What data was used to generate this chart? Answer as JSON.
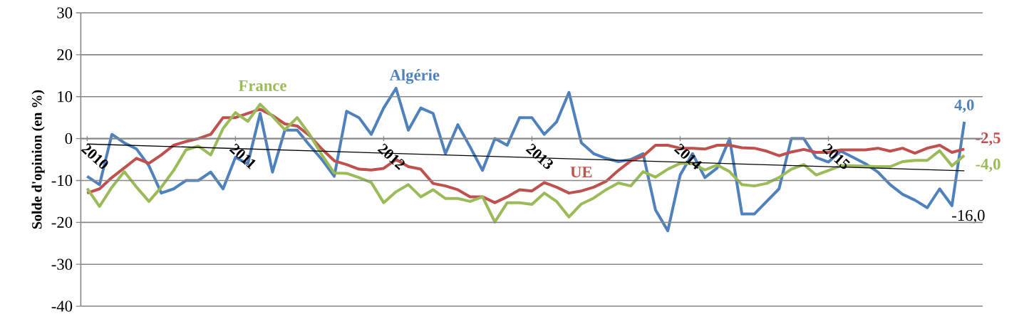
{
  "chart_data": {
    "type": "line",
    "ylabel": "Solde d'opinion (en %)",
    "x": [
      "2010-01",
      "2010-02",
      "2010-03",
      "2010-04",
      "2010-05",
      "2010-06",
      "2010-07",
      "2010-08",
      "2010-09",
      "2010-10",
      "2010-11",
      "2010-12",
      "2011-01",
      "2011-02",
      "2011-03",
      "2011-04",
      "2011-05",
      "2011-06",
      "2011-07",
      "2011-08",
      "2011-09",
      "2011-10",
      "2011-11",
      "2011-12",
      "2012-01",
      "2012-02",
      "2012-03",
      "2012-04",
      "2012-05",
      "2012-06",
      "2012-07",
      "2012-08",
      "2012-09",
      "2012-10",
      "2012-11",
      "2012-12",
      "2013-01",
      "2013-02",
      "2013-03",
      "2013-04",
      "2013-05",
      "2013-06",
      "2013-07",
      "2013-08",
      "2013-09",
      "2013-10",
      "2013-11",
      "2013-12",
      "2014-01",
      "2014-02",
      "2014-03",
      "2014-04",
      "2014-05",
      "2014-06",
      "2014-07",
      "2014-08",
      "2014-09",
      "2014-10",
      "2014-11",
      "2014-12",
      "2015-01",
      "2015-02",
      "2015-03",
      "2015-04",
      "2015-05",
      "2015-06",
      "2015-07",
      "2015-08",
      "2015-09",
      "2015-10",
      "2015-11",
      "2015-12"
    ],
    "xlim": [
      "2009-12-16",
      "2016-01-16"
    ],
    "xticks": [
      {
        "value": "2010-01",
        "label": "2010"
      },
      {
        "value": "2011-01",
        "label": "2011"
      },
      {
        "value": "2012-01",
        "label": "2012"
      },
      {
        "value": "2013-01",
        "label": "2013"
      },
      {
        "value": "2014-01",
        "label": "2014"
      },
      {
        "value": "2015-01",
        "label": "2015"
      }
    ],
    "ylim": [
      -40,
      30
    ],
    "yticks": [
      -40,
      -30,
      -20,
      -10,
      0,
      10,
      20,
      30
    ],
    "grid": "y",
    "series": [
      {
        "name": "Algérie",
        "color": "#4f81bd",
        "values": [
          -9,
          -11,
          1,
          -1,
          -2.5,
          -6.5,
          -13,
          -12,
          -10,
          -10,
          -8,
          -12,
          -4.5,
          -6,
          6,
          -8,
          2,
          2,
          -1.6,
          -5,
          -9,
          6.5,
          5,
          1,
          7.3,
          12,
          2,
          7.3,
          6,
          -3.6,
          3.3,
          -2,
          -7.6,
          0,
          -1.6,
          5,
          5,
          1,
          4,
          11,
          -1,
          -3.6,
          -4.7,
          -5.5,
          -5,
          -3.6,
          -17,
          -22,
          -8.7,
          -3.6,
          -9.3,
          -7,
          0,
          -18,
          -18,
          -15,
          -12,
          0,
          0,
          -4.5,
          -5.6,
          -3,
          -4.5,
          -6,
          -8,
          -11,
          -13.3,
          -14.7,
          -16.5,
          -12,
          -16,
          4
        ],
        "value_labels": [
          null,
          null,
          null,
          null,
          null,
          null,
          null,
          null,
          null,
          null,
          null,
          null,
          null,
          null,
          null,
          null,
          null,
          null,
          null,
          null,
          null,
          null,
          null,
          null,
          null,
          null,
          null,
          null,
          null,
          null,
          null,
          null,
          null,
          null,
          null,
          null,
          null,
          null,
          null,
          null,
          null,
          null,
          null,
          null,
          null,
          null,
          null,
          null,
          null,
          null,
          null,
          null,
          null,
          null,
          null,
          null,
          null,
          null,
          null,
          null,
          null,
          null,
          null,
          null,
          null,
          null,
          null,
          null,
          null,
          null,
          null,
          "4,0"
        ]
      },
      {
        "name": "UE",
        "color": "#c0504d",
        "values": [
          -13,
          -12,
          -9.3,
          -7,
          -4.7,
          -5.9,
          -3.9,
          -1.6,
          -0.7,
          0,
          1,
          5,
          5,
          6,
          7,
          5.5,
          3.5,
          3,
          0.7,
          -2.5,
          -5.3,
          -6.2,
          -7.3,
          -7.5,
          -7.1,
          -5,
          -6.7,
          -7.3,
          -10.7,
          -11.3,
          -12.2,
          -13.9,
          -13.9,
          -15.3,
          -13.9,
          -12.2,
          -12.5,
          -10.5,
          -11.6,
          -13,
          -12.5,
          -11.6,
          -10.2,
          -7.6,
          -5.3,
          -4.2,
          -1.6,
          -1.6,
          -2.3,
          -2.3,
          -2.5,
          -1.6,
          -1.6,
          -2.2,
          -2.3,
          -3,
          -4.1,
          -3.2,
          -2.6,
          -3.3,
          -3.3,
          -2.7,
          -2.7,
          -2.7,
          -2.3,
          -3,
          -2.3,
          -3.5,
          -2.3,
          -1.6,
          -3.3,
          -2.5
        ],
        "value_labels": [
          null,
          null,
          null,
          null,
          null,
          null,
          null,
          null,
          null,
          null,
          null,
          null,
          null,
          null,
          null,
          null,
          null,
          null,
          null,
          null,
          null,
          null,
          null,
          null,
          null,
          null,
          null,
          null,
          null,
          null,
          null,
          null,
          null,
          null,
          null,
          null,
          null,
          null,
          null,
          null,
          null,
          null,
          null,
          null,
          null,
          null,
          null,
          null,
          null,
          null,
          null,
          null,
          null,
          null,
          null,
          null,
          null,
          null,
          null,
          null,
          null,
          null,
          null,
          null,
          null,
          null,
          null,
          null,
          null,
          null,
          null,
          "-2,5"
        ]
      },
      {
        "name": "France",
        "color": "#9bbb59",
        "values": [
          -11.9,
          -16.2,
          -11.6,
          -7.9,
          -11.6,
          -15,
          -11.6,
          -7.6,
          -2.7,
          -1.8,
          -3.9,
          2.4,
          6.2,
          4.1,
          8.2,
          5.3,
          2.1,
          5,
          1,
          -3.9,
          -8.2,
          -8.3,
          -9.3,
          -10.5,
          -15.3,
          -12.7,
          -11,
          -13.9,
          -12.2,
          -14.3,
          -14.3,
          -15,
          -13.9,
          -19.9,
          -15.3,
          -15.3,
          -15.7,
          -13,
          -15,
          -18.7,
          -15.6,
          -14.2,
          -12.2,
          -10.6,
          -11.3,
          -7.9,
          -9.2,
          -7.3,
          -5.9,
          -6,
          -7.5,
          -6.3,
          -7.9,
          -11,
          -11.3,
          -10.7,
          -9.3,
          -7.3,
          -6.2,
          -8.7,
          -7.6,
          -6.5,
          -6.5,
          -6.6,
          -6.7,
          -6.7,
          -5.5,
          -5.2,
          -5.2,
          -2.9,
          -6.5,
          -4
        ],
        "value_labels": [
          null,
          null,
          null,
          null,
          null,
          null,
          null,
          null,
          null,
          null,
          null,
          null,
          null,
          null,
          null,
          null,
          null,
          null,
          null,
          null,
          null,
          null,
          null,
          null,
          null,
          null,
          null,
          null,
          null,
          null,
          null,
          null,
          null,
          null,
          null,
          null,
          null,
          null,
          null,
          null,
          null,
          null,
          null,
          null,
          null,
          null,
          null,
          null,
          null,
          null,
          null,
          null,
          null,
          null,
          null,
          null,
          null,
          null,
          null,
          null,
          null,
          null,
          null,
          null,
          null,
          null,
          null,
          null,
          null,
          null,
          null,
          "-4,0"
        ]
      },
      {
        "type": "line",
        "color": "#000000",
        "x": [
          "2010-01",
          "2015-12"
        ],
        "values": [
          -1.3,
          -7.7
        ]
      }
    ],
    "annotations": [
      {
        "text": "-16,0",
        "x": "2015-11",
        "y": -16
      }
    ]
  }
}
